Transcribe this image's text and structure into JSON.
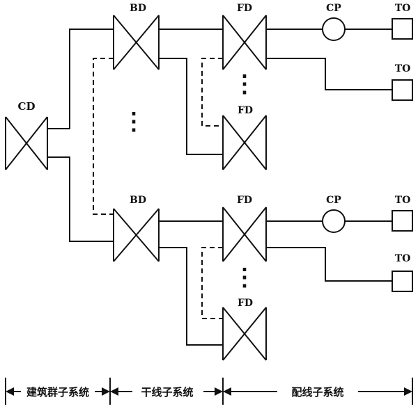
{
  "labels": {
    "cd": "CD",
    "bd": "BD",
    "fd": "FD",
    "cp": "CP",
    "to": "TO"
  },
  "dots": "⋮",
  "subsystems": {
    "campus": "建筑群子系统",
    "backbone": "干线子系统",
    "horizontal": "配线子系统"
  }
}
